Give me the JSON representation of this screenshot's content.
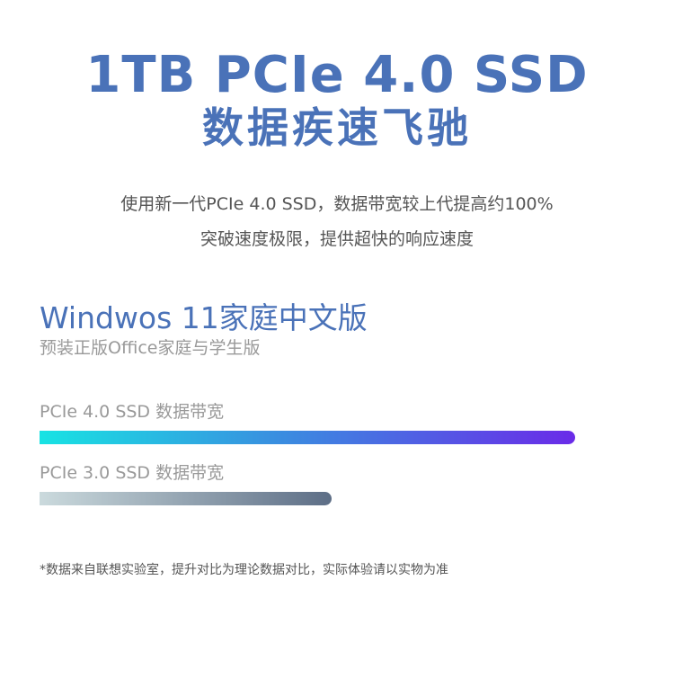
{
  "colors": {
    "accent": "#4a72b8",
    "bar_pcie4_start": "#18e3e3",
    "bar_pcie4_end": "#6a2be8",
    "bar_pcie3_start": "#cbdadd",
    "bar_pcie3_end": "#5d6e86"
  },
  "header": {
    "title_line1": "1TB PCIe 4.0 SSD",
    "title_line2": "数据疾速飞驰"
  },
  "description": {
    "line1": "使用新一代PCIe 4.0 SSD，数据带宽较上代提高约100%",
    "line2": "突破速度极限，提供超快的响应速度"
  },
  "os": {
    "title": "Windwos 11家庭中文版",
    "subtitle": "预装正版Office家庭与学生版"
  },
  "bandwidth": [
    {
      "label": "PCIe 4.0 SSD 数据带宽",
      "fill": 1.0
    },
    {
      "label": "PCIe 3.0 SSD 数据带宽",
      "fill": 0.545
    }
  ],
  "footnote": "*数据来自联想实验室，提升对比为理论数据对比，实际体验请以实物为准"
}
